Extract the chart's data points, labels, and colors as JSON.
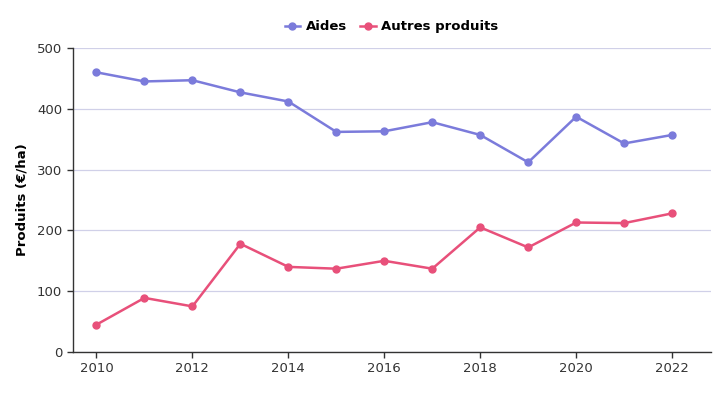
{
  "years": [
    2010,
    2011,
    2012,
    2013,
    2014,
    2015,
    2016,
    2017,
    2018,
    2019,
    2020,
    2021,
    2022
  ],
  "aides": [
    460,
    445,
    447,
    427,
    412,
    362,
    363,
    378,
    357,
    312,
    387,
    343,
    357
  ],
  "autres_produits": [
    45,
    89,
    75,
    178,
    140,
    137,
    150,
    137,
    205,
    172,
    213,
    212,
    228
  ],
  "aides_color": "#7b7bdb",
  "autres_color": "#e8507a",
  "aides_label": "Aides",
  "autres_label": "Autres produits",
  "ylabel": "Produits (€/ha)",
  "ylim": [
    0,
    500
  ],
  "xlim": [
    2009.5,
    2022.8
  ],
  "yticks": [
    0,
    100,
    200,
    300,
    400,
    500
  ],
  "xticks": [
    2010,
    2012,
    2014,
    2016,
    2018,
    2020,
    2022
  ],
  "bg_color": "#ffffff",
  "grid_color": "#d0d0e8",
  "marker_size": 5,
  "line_width": 1.8
}
